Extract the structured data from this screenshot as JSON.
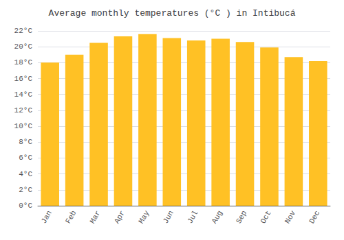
{
  "chart_data": {
    "type": "bar",
    "title": "Average monthly temperatures (°C ) in Intibucá",
    "categories": [
      "Jan",
      "Feb",
      "Mar",
      "Apr",
      "May",
      "Jun",
      "Jul",
      "Aug",
      "Sep",
      "Oct",
      "Nov",
      "Dec"
    ],
    "values": [
      18.0,
      19.0,
      20.5,
      21.3,
      21.6,
      21.1,
      20.8,
      21.0,
      20.6,
      19.9,
      18.7,
      18.2
    ],
    "color": "#FFC125",
    "ylim": [
      0,
      22
    ],
    "yticks": [
      {
        "value": 0,
        "label": "0°C"
      },
      {
        "value": 2,
        "label": "2°C"
      },
      {
        "value": 4,
        "label": "4°C"
      },
      {
        "value": 6,
        "label": "6°C"
      },
      {
        "value": 8,
        "label": "8°C"
      },
      {
        "value": 10,
        "label": "10°C"
      },
      {
        "value": 12,
        "label": "12°C"
      },
      {
        "value": 14,
        "label": "14°C"
      },
      {
        "value": 16,
        "label": "16°C"
      },
      {
        "value": 18,
        "label": "18°C"
      },
      {
        "value": 20,
        "label": "20°C"
      },
      {
        "value": 22,
        "label": "22°C"
      }
    ],
    "grid": true
  }
}
